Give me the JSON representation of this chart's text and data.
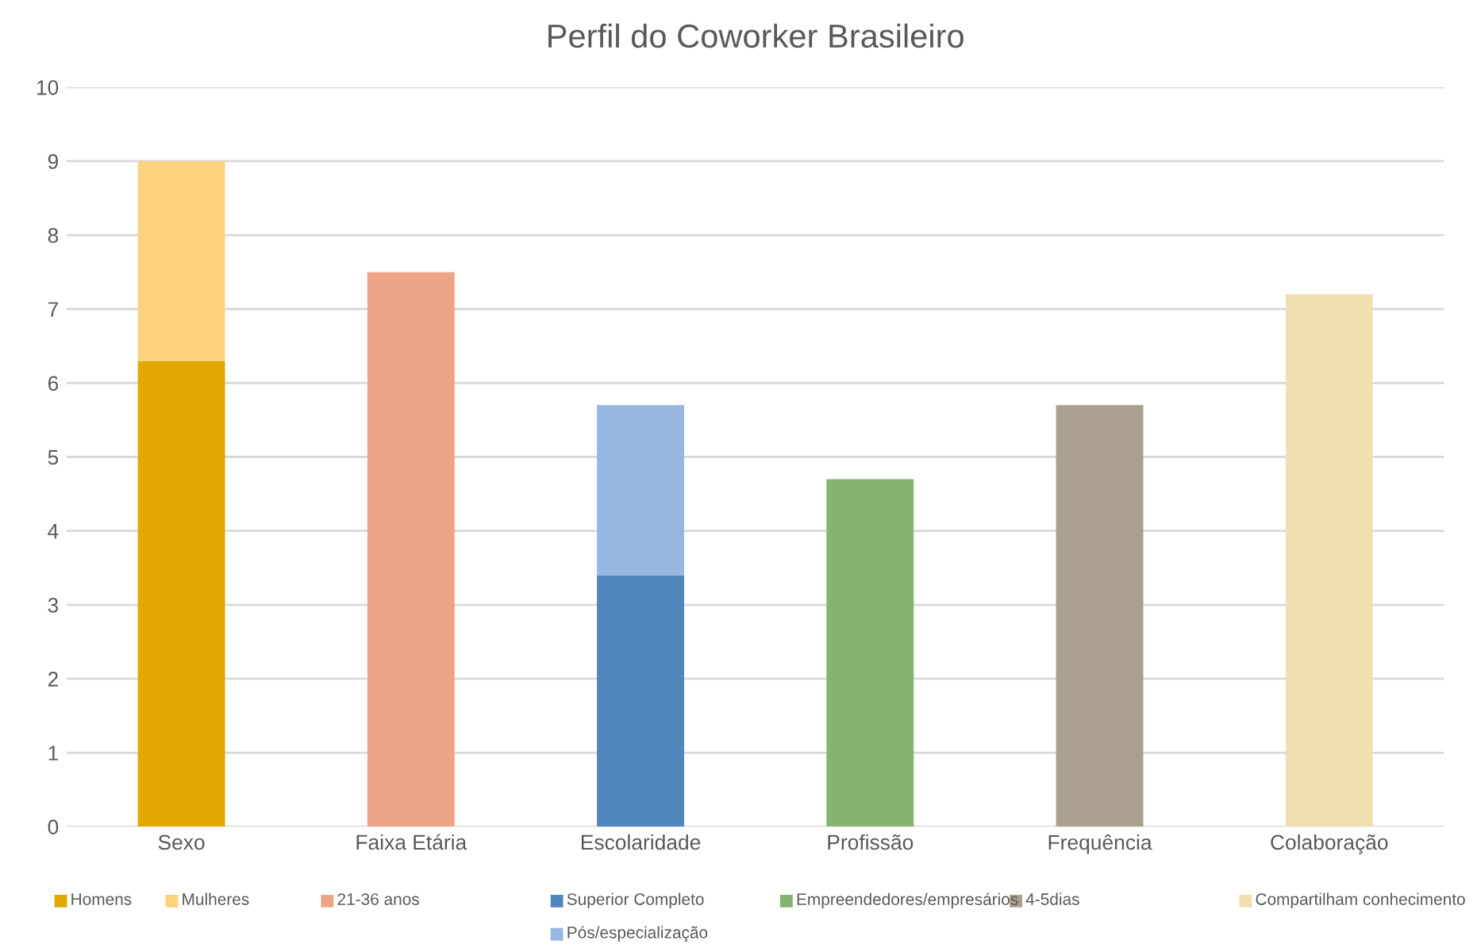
{
  "chart_data": {
    "type": "bar",
    "title": "Perfil do Coworker Brasileiro",
    "categories": [
      "Sexo",
      "Faixa Etária",
      "Escolaridade",
      "Profissão",
      "Frequência",
      "Colaboração"
    ],
    "stacked": true,
    "series": [
      {
        "name": "Homens",
        "color": "#e0a800",
        "values": [
          6.3,
          null,
          null,
          null,
          null,
          null
        ]
      },
      {
        "name": "Mulheres",
        "color": "#fcd27f",
        "values": [
          2.7,
          null,
          null,
          null,
          null,
          null
        ]
      },
      {
        "name": "21-36 anos",
        "color": "#eea587",
        "values": [
          null,
          7.5,
          null,
          null,
          null,
          null
        ]
      },
      {
        "name": "Superior Completo",
        "color": "#4f86bb",
        "values": [
          null,
          null,
          3.4,
          null,
          null,
          null
        ]
      },
      {
        "name": "Pós/especialização",
        "color": "#96b7df",
        "values": [
          null,
          null,
          2.3,
          null,
          null,
          null
        ]
      },
      {
        "name": "Empreendedores/empresários",
        "color": "#86b36f",
        "values": [
          null,
          null,
          null,
          4.7,
          null,
          null
        ]
      },
      {
        "name": "4-5dias",
        "color": "#ab9f8f",
        "values": [
          null,
          null,
          null,
          null,
          5.7,
          null
        ]
      },
      {
        "name": "Compartilham conhecimento",
        "color": "#f0dfb0",
        "values": [
          null,
          null,
          null,
          null,
          null,
          7.2
        ]
      }
    ],
    "ylim": [
      0,
      10
    ],
    "yticks": [
      0,
      1,
      2,
      3,
      4,
      5,
      6,
      7,
      8,
      9,
      10
    ],
    "grid": "y",
    "legend": "bottom"
  }
}
